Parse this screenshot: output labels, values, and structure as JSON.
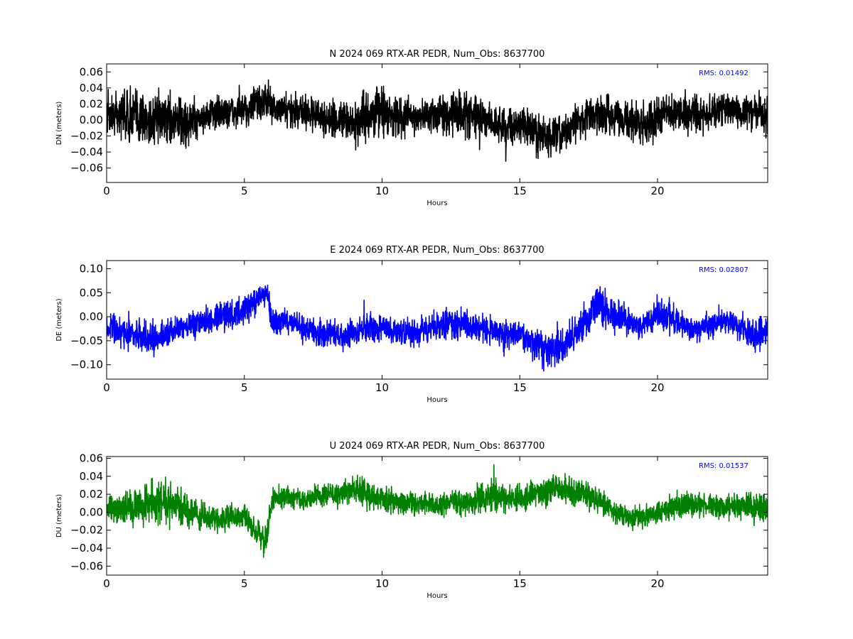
{
  "chart_data": [
    {
      "type": "line",
      "title": "N 2024 069 RTX-AR  PEDR, Num_Obs: 8637700",
      "xlabel": "Hours",
      "ylabel": "DN (meters)",
      "xlim": [
        0,
        24
      ],
      "ylim": [
        -0.078,
        0.07
      ],
      "xticks": [
        "0",
        "5",
        "10",
        "15",
        "20"
      ],
      "xtick_values": [
        0,
        5,
        10,
        15,
        20
      ],
      "yticks": [
        "0.06",
        "0.04",
        "0.02",
        "0.00",
        "−0.02",
        "−0.04",
        "−0.06"
      ],
      "ytick_values": [
        0.06,
        0.04,
        0.02,
        0.0,
        -0.02,
        -0.04,
        -0.06
      ],
      "annotation": "RMS:  0.01492",
      "grid": false,
      "series": [
        {
          "color": "#000000",
          "x": [
            0,
            0.5,
            1,
            1.5,
            2,
            2.5,
            3,
            3.5,
            4,
            4.5,
            5,
            5.5,
            5.8,
            6,
            6.5,
            7,
            7.5,
            8,
            8.5,
            9,
            9.5,
            10,
            10.5,
            11,
            11.5,
            12,
            12.5,
            13,
            13.5,
            14,
            14.5,
            15,
            15.5,
            16,
            16.5,
            17,
            17.5,
            18,
            18.5,
            19,
            19.5,
            20,
            20.5,
            21,
            21.5,
            22,
            22.5,
            23,
            23.5,
            24
          ],
          "center": [
            0.005,
            0.008,
            0.005,
            0.0,
            0.003,
            0.002,
            -0.004,
            0.005,
            0.008,
            0.01,
            0.012,
            0.022,
            0.025,
            0.015,
            0.01,
            0.013,
            0.006,
            0.0,
            0.0,
            -0.005,
            0.006,
            0.012,
            0.003,
            0.005,
            0.002,
            0.008,
            0.01,
            0.01,
            0.002,
            -0.003,
            -0.01,
            -0.005,
            -0.015,
            -0.022,
            -0.018,
            -0.005,
            0.005,
            0.008,
            0.005,
            0.0,
            -0.005,
            0.005,
            0.008,
            0.012,
            0.005,
            0.01,
            0.015,
            0.012,
            0.01,
            0.005
          ],
          "amp": [
            0.035,
            0.045,
            0.05,
            0.05,
            0.045,
            0.04,
            0.04,
            0.03,
            0.03,
            0.028,
            0.028,
            0.035,
            0.032,
            0.03,
            0.03,
            0.032,
            0.03,
            0.03,
            0.035,
            0.035,
            0.04,
            0.04,
            0.035,
            0.03,
            0.03,
            0.032,
            0.04,
            0.045,
            0.035,
            0.032,
            0.032,
            0.03,
            0.035,
            0.038,
            0.035,
            0.03,
            0.03,
            0.035,
            0.035,
            0.03,
            0.04,
            0.035,
            0.03,
            0.032,
            0.03,
            0.03,
            0.03,
            0.03,
            0.03,
            0.035
          ]
        }
      ]
    },
    {
      "type": "line",
      "title": "E 2024 069 RTX-AR  PEDR, Num_Obs: 8637700",
      "xlabel": "Hours",
      "ylabel": "DE (meters)",
      "xlim": [
        0,
        24
      ],
      "ylim": [
        -0.13,
        0.117
      ],
      "xticks": [
        "0",
        "5",
        "10",
        "15",
        "20"
      ],
      "xtick_values": [
        0,
        5,
        10,
        15,
        20
      ],
      "yticks": [
        "0.10",
        "0.05",
        "0.00",
        "−0.05",
        "−0.10"
      ],
      "ytick_values": [
        0.1,
        0.05,
        0.0,
        -0.05,
        -0.1
      ],
      "annotation": "RMS:  0.02807",
      "grid": false,
      "series": [
        {
          "color": "#0000ff",
          "x": [
            0,
            0.5,
            1,
            1.5,
            2,
            2.5,
            3,
            3.5,
            4,
            4.5,
            5,
            5.5,
            5.8,
            6,
            6.5,
            7,
            7.5,
            8,
            8.5,
            9,
            9.5,
            10,
            10.5,
            11,
            11.5,
            12,
            12.5,
            13,
            13.5,
            14,
            14.5,
            15,
            15.5,
            16,
            16.5,
            17,
            17.5,
            17.7,
            18,
            18.5,
            19,
            19.5,
            20,
            20.5,
            21,
            21.5,
            22,
            22.5,
            23,
            23.5,
            24
          ],
          "center": [
            -0.02,
            -0.03,
            -0.035,
            -0.05,
            -0.04,
            -0.03,
            -0.02,
            -0.01,
            0.0,
            0.005,
            0.015,
            0.035,
            0.055,
            -0.005,
            -0.01,
            -0.02,
            -0.03,
            -0.035,
            -0.04,
            -0.035,
            -0.025,
            -0.02,
            -0.03,
            -0.035,
            -0.03,
            -0.02,
            -0.015,
            -0.015,
            -0.02,
            -0.03,
            -0.04,
            -0.035,
            -0.055,
            -0.07,
            -0.06,
            -0.04,
            -0.01,
            0.03,
            0.02,
            0.0,
            -0.01,
            -0.02,
            0.01,
            0.0,
            -0.02,
            -0.025,
            -0.015,
            -0.01,
            -0.02,
            -0.04,
            -0.03
          ],
          "amp": [
            0.04,
            0.045,
            0.045,
            0.05,
            0.045,
            0.04,
            0.04,
            0.04,
            0.04,
            0.04,
            0.04,
            0.035,
            0.035,
            0.04,
            0.04,
            0.04,
            0.04,
            0.04,
            0.04,
            0.045,
            0.045,
            0.045,
            0.04,
            0.04,
            0.04,
            0.045,
            0.045,
            0.045,
            0.04,
            0.04,
            0.04,
            0.04,
            0.05,
            0.055,
            0.05,
            0.045,
            0.05,
            0.07,
            0.055,
            0.045,
            0.04,
            0.04,
            0.045,
            0.045,
            0.04,
            0.04,
            0.04,
            0.04,
            0.045,
            0.05,
            0.05
          ]
        }
      ]
    },
    {
      "type": "line",
      "title": "U 2024 069 RTX-AR  PEDR, Num_Obs: 8637700",
      "xlabel": "Hours",
      "ylabel": "DU (meters)",
      "xlim": [
        0,
        24
      ],
      "ylim": [
        -0.07,
        0.062
      ],
      "xticks": [
        "0",
        "5",
        "10",
        "15",
        "20"
      ],
      "xtick_values": [
        0,
        5,
        10,
        15,
        20
      ],
      "yticks": [
        "0.06",
        "0.04",
        "0.02",
        "0.00",
        "−0.02",
        "−0.04",
        "−0.06"
      ],
      "ytick_values": [
        0.06,
        0.04,
        0.02,
        0.0,
        -0.02,
        -0.04,
        -0.06
      ],
      "annotation": "RMS:  0.01537",
      "grid": false,
      "series": [
        {
          "color": "#008000",
          "x": [
            0,
            0.5,
            1,
            1.5,
            2,
            2.5,
            3,
            3.5,
            4,
            4.5,
            5,
            5.5,
            5.8,
            6,
            6.5,
            7,
            7.5,
            8,
            8.5,
            9,
            9.5,
            10,
            10.5,
            11,
            11.5,
            12,
            12.5,
            13,
            13.5,
            14,
            14.5,
            15,
            15.5,
            16,
            16.5,
            17,
            17.5,
            18,
            18.5,
            19,
            19.5,
            20,
            20.5,
            21,
            21.5,
            22,
            22.5,
            23,
            23.5,
            24
          ],
          "center": [
            0.005,
            0.0,
            0.008,
            0.012,
            0.01,
            0.008,
            0.0,
            -0.005,
            -0.01,
            -0.005,
            -0.005,
            -0.025,
            -0.035,
            0.015,
            0.018,
            0.015,
            0.015,
            0.02,
            0.02,
            0.025,
            0.02,
            0.015,
            0.012,
            0.012,
            0.01,
            0.008,
            0.012,
            0.01,
            0.015,
            0.018,
            0.015,
            0.015,
            0.02,
            0.025,
            0.025,
            0.022,
            0.02,
            0.01,
            0.0,
            -0.005,
            -0.005,
            0.0,
            0.005,
            0.008,
            0.01,
            0.005,
            0.005,
            0.008,
            0.005,
            0.005
          ],
          "amp": [
            0.02,
            0.025,
            0.03,
            0.035,
            0.035,
            0.03,
            0.025,
            0.02,
            0.02,
            0.02,
            0.02,
            0.02,
            0.025,
            0.02,
            0.018,
            0.018,
            0.018,
            0.018,
            0.02,
            0.022,
            0.025,
            0.025,
            0.02,
            0.02,
            0.018,
            0.02,
            0.02,
            0.02,
            0.022,
            0.025,
            0.02,
            0.02,
            0.022,
            0.025,
            0.025,
            0.025,
            0.025,
            0.02,
            0.018,
            0.018,
            0.018,
            0.018,
            0.02,
            0.022,
            0.02,
            0.018,
            0.018,
            0.02,
            0.022,
            0.022
          ]
        }
      ]
    }
  ]
}
